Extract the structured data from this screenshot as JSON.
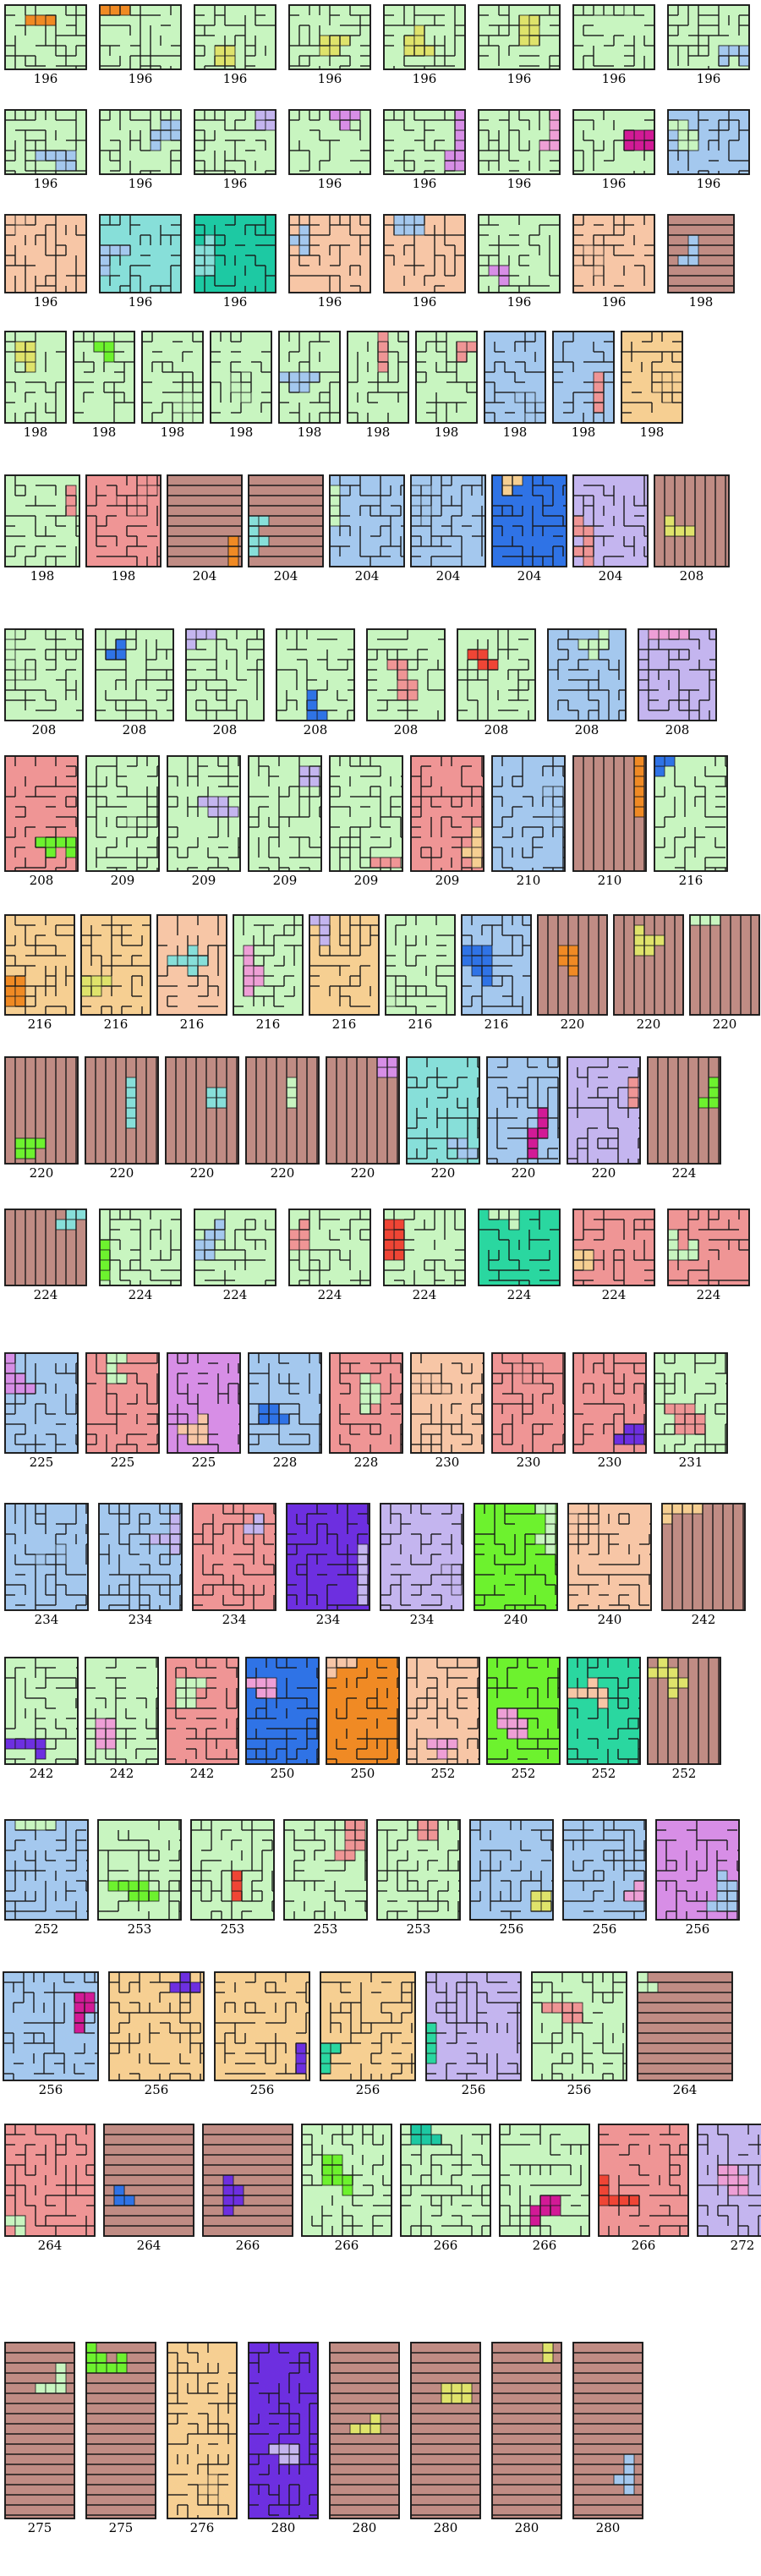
{
  "colors": {
    "green": "#c8f5c0",
    "peach": "#f7c6a6",
    "blue": "#a4c8ee",
    "brown": "#c08c84",
    "salmon": "#ef9595",
    "sand": "#f6cf92",
    "lavender": "#c4b5ef",
    "pink": "#ee9fd6",
    "cyan": "#87dfd9",
    "teal": "#1dc9a3",
    "purple": "#d78ee6",
    "royal": "#2f73e6",
    "indigo": "#6d2fe0",
    "lime": "#6df22e",
    "orange": "#f08a24",
    "magenta": "#d21a96",
    "red": "#ef4535",
    "yellowgreen": "#dfe36b",
    "mint": "#2ad7a0",
    "line": "#1a1a1a"
  },
  "rows": [
    {
      "items": [
        {
          "label": "196",
          "bg": "green",
          "accent": "orange"
        },
        {
          "label": "196",
          "bg": "green",
          "accent": "orange"
        },
        {
          "label": "196",
          "bg": "green",
          "accent": "yellowgreen"
        },
        {
          "label": "196",
          "bg": "green",
          "accent": "yellowgreen"
        },
        {
          "label": "196",
          "bg": "green",
          "accent": "yellowgreen"
        },
        {
          "label": "196",
          "bg": "green",
          "accent": "yellowgreen"
        },
        {
          "label": "196",
          "bg": "green",
          "accent": "green"
        },
        {
          "label": "196",
          "bg": "green",
          "accent": "blue"
        }
      ]
    },
    {
      "items": [
        {
          "label": "196",
          "bg": "green",
          "accent": "blue"
        },
        {
          "label": "196",
          "bg": "green",
          "accent": "blue"
        },
        {
          "label": "196",
          "bg": "green",
          "accent": "lavender"
        },
        {
          "label": "196",
          "bg": "green",
          "accent": "purple"
        },
        {
          "label": "196",
          "bg": "green",
          "accent": "purple"
        },
        {
          "label": "196",
          "bg": "green",
          "accent": "pink"
        },
        {
          "label": "196",
          "bg": "green",
          "accent": "magenta"
        },
        {
          "label": "196",
          "bg": "blue",
          "accent": "green"
        }
      ]
    },
    {
      "items": [
        {
          "label": "196",
          "bg": "peach",
          "accent": "peach"
        },
        {
          "label": "196",
          "bg": "cyan",
          "accent": "blue"
        },
        {
          "label": "196",
          "bg": "teal",
          "accent": "cyan"
        },
        {
          "label": "196",
          "bg": "peach",
          "accent": "blue"
        },
        {
          "label": "196",
          "bg": "peach",
          "accent": "blue"
        },
        {
          "label": "196",
          "bg": "green",
          "accent": "purple"
        },
        {
          "label": "196",
          "bg": "peach",
          "accent": "peach"
        },
        {
          "label": "198",
          "bg": "brown",
          "accent": "blue",
          "tall": true
        }
      ]
    },
    {
      "items": [
        {
          "label": "198",
          "bg": "green",
          "accent": "yellowgreen"
        },
        {
          "label": "198",
          "bg": "green",
          "accent": "lime"
        },
        {
          "label": "198",
          "bg": "green",
          "accent": "green"
        },
        {
          "label": "198",
          "bg": "green",
          "accent": "green"
        },
        {
          "label": "198",
          "bg": "green",
          "accent": "blue"
        },
        {
          "label": "198",
          "bg": "green",
          "accent": "salmon"
        },
        {
          "label": "198",
          "bg": "green",
          "accent": "salmon"
        },
        {
          "label": "198",
          "bg": "blue",
          "accent": "blue"
        },
        {
          "label": "198",
          "bg": "blue",
          "accent": "salmon"
        },
        {
          "label": "198",
          "bg": "sand",
          "accent": "sand"
        }
      ]
    },
    {
      "items": [
        {
          "label": "198",
          "bg": "green",
          "accent": "salmon"
        },
        {
          "label": "198",
          "bg": "salmon",
          "accent": "salmon"
        },
        {
          "label": "204",
          "bg": "brown",
          "accent": "orange"
        },
        {
          "label": "204",
          "bg": "brown",
          "accent": "cyan"
        },
        {
          "label": "204",
          "bg": "blue",
          "accent": "green"
        },
        {
          "label": "204",
          "bg": "blue",
          "accent": "blue"
        },
        {
          "label": "204",
          "bg": "royal",
          "accent": "sand"
        },
        {
          "label": "204",
          "bg": "lavender",
          "accent": "salmon"
        },
        {
          "label": "208",
          "bg": "brown",
          "accent": "yellowgreen"
        }
      ]
    },
    {
      "items": [
        {
          "label": "208",
          "bg": "green",
          "accent": "green"
        },
        {
          "label": "208",
          "bg": "green",
          "accent": "royal"
        },
        {
          "label": "208",
          "bg": "green",
          "accent": "lavender"
        },
        {
          "label": "208",
          "bg": "green",
          "accent": "royal"
        },
        {
          "label": "208",
          "bg": "green",
          "accent": "salmon"
        },
        {
          "label": "208",
          "bg": "green",
          "accent": "red"
        },
        {
          "label": "208",
          "bg": "blue",
          "accent": "green"
        },
        {
          "label": "208",
          "bg": "lavender",
          "accent": "pink"
        }
      ]
    },
    {
      "items": [
        {
          "label": "208",
          "bg": "salmon",
          "accent": "lime"
        },
        {
          "label": "209",
          "bg": "green",
          "accent": "green"
        },
        {
          "label": "209",
          "bg": "green",
          "accent": "lavender"
        },
        {
          "label": "209",
          "bg": "green",
          "accent": "lavender"
        },
        {
          "label": "209",
          "bg": "green",
          "accent": "salmon"
        },
        {
          "label": "209",
          "bg": "salmon",
          "accent": "sand"
        },
        {
          "label": "210",
          "bg": "blue",
          "accent": "blue"
        },
        {
          "label": "210",
          "bg": "brown",
          "accent": "orange"
        },
        {
          "label": "216",
          "bg": "green",
          "accent": "royal"
        }
      ]
    },
    {
      "items": [
        {
          "label": "216",
          "bg": "sand",
          "accent": "orange"
        },
        {
          "label": "216",
          "bg": "sand",
          "accent": "yellowgreen"
        },
        {
          "label": "216",
          "bg": "peach",
          "accent": "cyan"
        },
        {
          "label": "216",
          "bg": "green",
          "accent": "pink"
        },
        {
          "label": "216",
          "bg": "sand",
          "accent": "lavender"
        },
        {
          "label": "216",
          "bg": "green",
          "accent": "green"
        },
        {
          "label": "216",
          "bg": "blue",
          "accent": "royal"
        },
        {
          "label": "220",
          "bg": "brown",
          "accent": "orange"
        },
        {
          "label": "220",
          "bg": "brown",
          "accent": "yellowgreen"
        },
        {
          "label": "220",
          "bg": "brown",
          "accent": "green"
        }
      ]
    },
    {
      "items": [
        {
          "label": "220",
          "bg": "brown",
          "accent": "lime"
        },
        {
          "label": "220",
          "bg": "brown",
          "accent": "cyan"
        },
        {
          "label": "220",
          "bg": "brown",
          "accent": "cyan"
        },
        {
          "label": "220",
          "bg": "brown",
          "accent": "green"
        },
        {
          "label": "220",
          "bg": "brown",
          "accent": "purple"
        },
        {
          "label": "220",
          "bg": "cyan",
          "accent": "blue"
        },
        {
          "label": "220",
          "bg": "blue",
          "accent": "magenta"
        },
        {
          "label": "220",
          "bg": "lavender",
          "accent": "salmon"
        },
        {
          "label": "224",
          "bg": "brown",
          "accent": "lime"
        }
      ]
    },
    {
      "items": [
        {
          "label": "224",
          "bg": "brown",
          "accent": "cyan"
        },
        {
          "label": "224",
          "bg": "green",
          "accent": "lime"
        },
        {
          "label": "224",
          "bg": "green",
          "accent": "blue"
        },
        {
          "label": "224",
          "bg": "green",
          "accent": "salmon"
        },
        {
          "label": "224",
          "bg": "green",
          "accent": "red"
        },
        {
          "label": "224",
          "bg": "mint",
          "accent": "green"
        },
        {
          "label": "224",
          "bg": "salmon",
          "accent": "sand"
        },
        {
          "label": "224",
          "bg": "salmon",
          "accent": "green"
        }
      ]
    },
    {
      "items": [
        {
          "label": "225",
          "bg": "blue",
          "accent": "purple"
        },
        {
          "label": "225",
          "bg": "salmon",
          "accent": "green"
        },
        {
          "label": "225",
          "bg": "purple",
          "accent": "peach"
        },
        {
          "label": "228",
          "bg": "blue",
          "accent": "royal"
        },
        {
          "label": "228",
          "bg": "salmon",
          "accent": "green"
        },
        {
          "label": "230",
          "bg": "peach",
          "accent": "peach"
        },
        {
          "label": "230",
          "bg": "salmon",
          "accent": "salmon"
        },
        {
          "label": "230",
          "bg": "salmon",
          "accent": "indigo"
        },
        {
          "label": "231",
          "bg": "green",
          "accent": "salmon"
        }
      ]
    },
    {
      "items": [
        {
          "label": "234",
          "bg": "blue",
          "accent": "blue"
        },
        {
          "label": "234",
          "bg": "blue",
          "accent": "lavender"
        },
        {
          "label": "234",
          "bg": "salmon",
          "accent": "lavender"
        },
        {
          "label": "234",
          "bg": "indigo",
          "accent": "lavender"
        },
        {
          "label": "234",
          "bg": "lavender",
          "accent": "lavender"
        },
        {
          "label": "240",
          "bg": "lime",
          "accent": "green"
        },
        {
          "label": "240",
          "bg": "peach",
          "accent": "peach"
        },
        {
          "label": "242",
          "bg": "brown",
          "accent": "sand"
        }
      ]
    },
    {
      "items": [
        {
          "label": "242",
          "bg": "green",
          "accent": "indigo"
        },
        {
          "label": "242",
          "bg": "green",
          "accent": "pink"
        },
        {
          "label": "242",
          "bg": "salmon",
          "accent": "green"
        },
        {
          "label": "250",
          "bg": "royal",
          "accent": "pink"
        },
        {
          "label": "250",
          "bg": "orange",
          "accent": "peach"
        },
        {
          "label": "252",
          "bg": "peach",
          "accent": "pink"
        },
        {
          "label": "252",
          "bg": "lime",
          "accent": "pink"
        },
        {
          "label": "252",
          "bg": "mint",
          "accent": "peach"
        },
        {
          "label": "252",
          "bg": "brown",
          "accent": "yellowgreen"
        }
      ]
    },
    {
      "items": [
        {
          "label": "252",
          "bg": "blue",
          "accent": "green"
        },
        {
          "label": "253",
          "bg": "green",
          "accent": "lime"
        },
        {
          "label": "253",
          "bg": "green",
          "accent": "red"
        },
        {
          "label": "253",
          "bg": "green",
          "accent": "salmon"
        },
        {
          "label": "253",
          "bg": "green",
          "accent": "salmon"
        },
        {
          "label": "256",
          "bg": "blue",
          "accent": "yellowgreen"
        },
        {
          "label": "256",
          "bg": "blue",
          "accent": "pink"
        },
        {
          "label": "256",
          "bg": "purple",
          "accent": "blue"
        }
      ]
    },
    {
      "items": [
        {
          "label": "256",
          "bg": "blue",
          "accent": "magenta"
        },
        {
          "label": "256",
          "bg": "sand",
          "accent": "indigo"
        },
        {
          "label": "256",
          "bg": "sand",
          "accent": "indigo"
        },
        {
          "label": "256",
          "bg": "sand",
          "accent": "mint"
        },
        {
          "label": "256",
          "bg": "lavender",
          "accent": "mint"
        },
        {
          "label": "256",
          "bg": "green",
          "accent": "salmon"
        },
        {
          "label": "264",
          "bg": "brown",
          "accent": "green"
        }
      ]
    },
    {
      "items": [
        {
          "label": "264",
          "bg": "salmon",
          "accent": "green"
        },
        {
          "label": "264",
          "bg": "brown",
          "accent": "royal"
        },
        {
          "label": "266",
          "bg": "brown",
          "accent": "indigo"
        },
        {
          "label": "266",
          "bg": "green",
          "accent": "lime"
        },
        {
          "label": "266",
          "bg": "green",
          "accent": "teal"
        },
        {
          "label": "266",
          "bg": "green",
          "accent": "magenta"
        },
        {
          "label": "266",
          "bg": "salmon",
          "accent": "red"
        },
        {
          "label": "272",
          "bg": "lavender",
          "accent": "pink"
        }
      ]
    },
    {
      "items": [
        {
          "label": "275",
          "bg": "brown",
          "accent": "green"
        },
        {
          "label": "275",
          "bg": "brown",
          "accent": "lime"
        },
        {
          "label": "276",
          "bg": "sand",
          "accent": "sand"
        },
        {
          "label": "280",
          "bg": "indigo",
          "accent": "lavender"
        },
        {
          "label": "280",
          "bg": "brown",
          "accent": "yellowgreen"
        },
        {
          "label": "280",
          "bg": "brown",
          "accent": "yellowgreen"
        },
        {
          "label": "280",
          "bg": "brown",
          "accent": "yellowgreen"
        },
        {
          "label": "280",
          "bg": "brown",
          "accent": "blue"
        }
      ]
    }
  ]
}
